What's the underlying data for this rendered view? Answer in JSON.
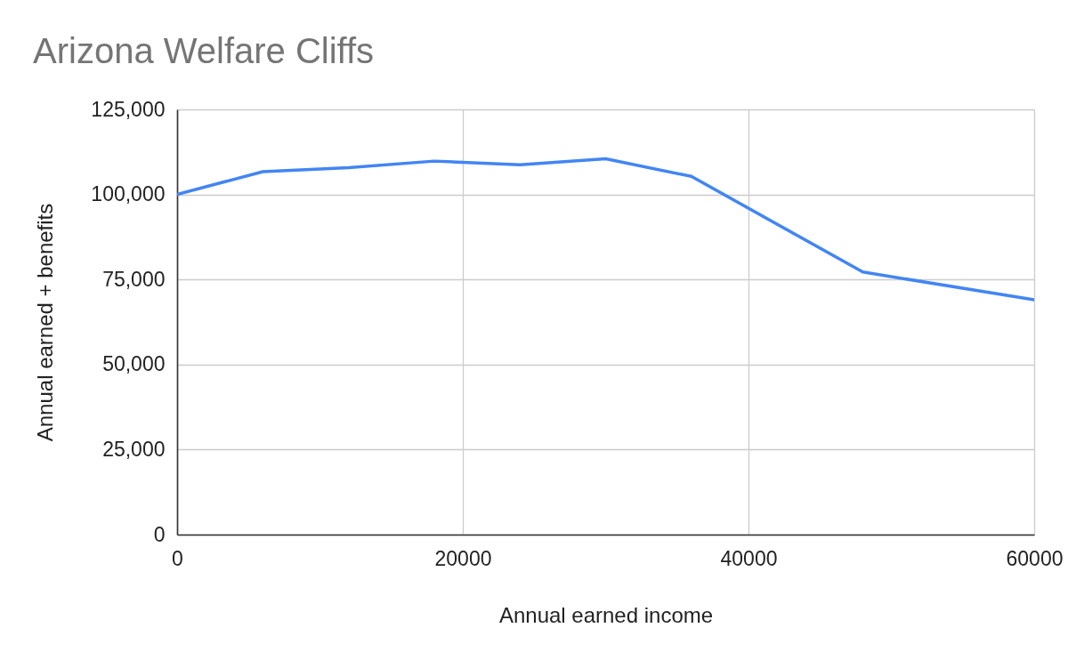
{
  "chart_data": {
    "type": "line",
    "title": "Arizona Welfare Cliffs",
    "xlabel": "Annual earned income",
    "ylabel": "Annual earned + benefits",
    "x": [
      0,
      6000,
      12000,
      18000,
      24000,
      30000,
      36000,
      48000,
      60000
    ],
    "series": [
      {
        "color": "#4285f4",
        "values": [
          100000,
          106700,
          107900,
          109800,
          108700,
          110500,
          105300,
          77200,
          69000
        ]
      }
    ],
    "xlim": [
      0,
      60000
    ],
    "xticks": [
      0,
      20000,
      40000,
      60000
    ],
    "ylim": [
      0,
      125000
    ],
    "yticks": [
      0,
      {
        "value": 25000,
        "label": "25,000"
      },
      {
        "value": 50000,
        "label": "50,000"
      },
      {
        "value": 75000,
        "label": "75,000"
      },
      {
        "value": 100000,
        "label": "100,000"
      },
      {
        "value": 125000,
        "label": "125,000"
      }
    ],
    "grid": true,
    "legend": false,
    "marker": "none",
    "line_style": "solid"
  }
}
